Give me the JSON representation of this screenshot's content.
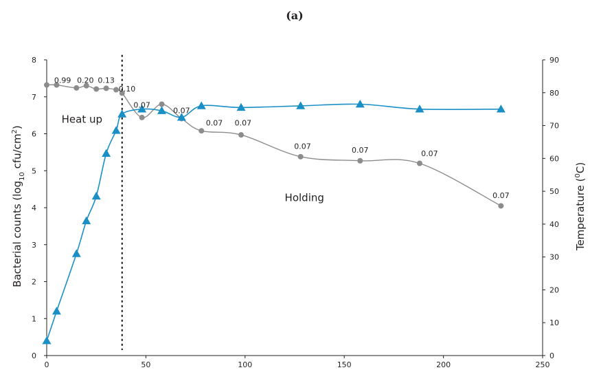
{
  "chart_data": {
    "type": "line",
    "title": "(a)",
    "xlim": [
      0,
      250
    ],
    "x_ticks": [
      0,
      50,
      100,
      150,
      200,
      250
    ],
    "ylim_left": [
      0,
      8
    ],
    "y_ticks_left": [
      0,
      1,
      2,
      3,
      4,
      5,
      6,
      7,
      8
    ],
    "ylim_right": [
      0,
      90
    ],
    "y_ticks_right": [
      0,
      10,
      20,
      30,
      40,
      50,
      60,
      70,
      80,
      90
    ],
    "ylabel_left": {
      "main": "Bacterial counts (log",
      "sub": "10",
      "mid": " cfu/cm",
      "sup": "2",
      "end": ")"
    },
    "ylabel_right": {
      "main": "Temperature (",
      "sup": "0",
      "end": "C)"
    },
    "series": [
      {
        "axis": "left",
        "color": "#8c8c8c",
        "marker": "circle",
        "points": [
          {
            "x": 0,
            "y": 7.32
          },
          {
            "x": 5,
            "y": 7.32
          },
          {
            "x": 15,
            "y": 7.24
          },
          {
            "x": 20,
            "y": 7.3
          },
          {
            "x": 25,
            "y": 7.21
          },
          {
            "x": 30,
            "y": 7.23
          },
          {
            "x": 35,
            "y": 7.19
          },
          {
            "x": 38,
            "y": 7.1
          },
          {
            "x": 48,
            "y": 6.44
          },
          {
            "x": 58,
            "y": 6.8
          },
          {
            "x": 68,
            "y": 6.41
          },
          {
            "x": 78,
            "y": 6.08
          },
          {
            "x": 98,
            "y": 5.97
          },
          {
            "x": 128,
            "y": 5.38
          },
          {
            "x": 158,
            "y": 5.27
          },
          {
            "x": 188,
            "y": 5.2
          },
          {
            "x": 229,
            "y": 4.05
          }
        ]
      },
      {
        "axis": "right",
        "color": "#1a8fc6",
        "marker": "triangle",
        "points": [
          {
            "x": 0,
            "y": 4.5
          },
          {
            "x": 5,
            "y": 13.5
          },
          {
            "x": 15,
            "y": 31
          },
          {
            "x": 20,
            "y": 41
          },
          {
            "x": 25,
            "y": 48.5
          },
          {
            "x": 30,
            "y": 61.5
          },
          {
            "x": 35,
            "y": 68.5
          },
          {
            "x": 38,
            "y": 73.5
          },
          {
            "x": 48,
            "y": 75
          },
          {
            "x": 58,
            "y": 74.5
          },
          {
            "x": 68,
            "y": 72.5
          },
          {
            "x": 78,
            "y": 76
          },
          {
            "x": 98,
            "y": 75.5
          },
          {
            "x": 128,
            "y": 76
          },
          {
            "x": 158,
            "y": 76.5
          },
          {
            "x": 188,
            "y": 75
          },
          {
            "x": 229,
            "y": 75
          }
        ]
      }
    ],
    "data_labels": [
      {
        "x": 8,
        "y": 7.38,
        "text": "0.99"
      },
      {
        "x": 19.5,
        "y": 7.38,
        "text": "0.20"
      },
      {
        "x": 30,
        "y": 7.38,
        "text": "0.13"
      },
      {
        "x": 40.5,
        "y": 7.14,
        "text": "0.10"
      },
      {
        "x": 48,
        "y": 6.71,
        "text": "0.07"
      },
      {
        "x": 68,
        "y": 6.56,
        "text": "0.07"
      },
      {
        "x": 84.5,
        "y": 6.22,
        "text": "0.07"
      },
      {
        "x": 99,
        "y": 6.22,
        "text": "0.07"
      },
      {
        "x": 129,
        "y": 5.59,
        "text": "0.07"
      },
      {
        "x": 158,
        "y": 5.49,
        "text": "0.07"
      },
      {
        "x": 193,
        "y": 5.4,
        "text": "0.07"
      },
      {
        "x": 229,
        "y": 4.26,
        "text": "0.07"
      }
    ],
    "annotations": [
      {
        "x": 7.5,
        "y": 6.3,
        "text": "Heat up"
      },
      {
        "x": 120,
        "y": 4.18,
        "text": "Holding"
      }
    ],
    "vline": {
      "x": 38,
      "style": "dotted"
    }
  }
}
